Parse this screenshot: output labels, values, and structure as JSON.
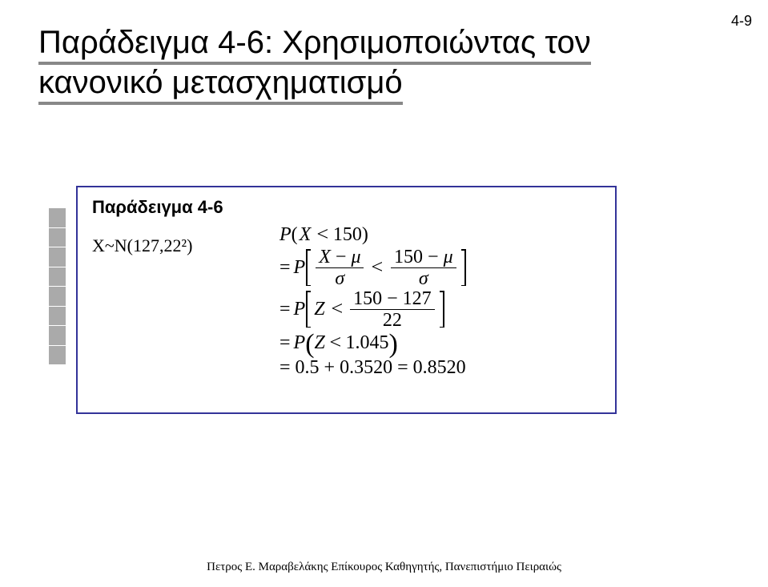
{
  "page_number": "4-9",
  "title_line1": "Παράδειγμα 4-6: Χρησιμοποιώντας τον",
  "title_line2": "κανονικό μετασχηματισμό",
  "box_label": "Παράδειγμα 4-6",
  "distribution": "X~N(127,22²)",
  "eq": {
    "l1_lhs": "P",
    "l1_open": "(",
    "l1_var": "X",
    "l1_lt": "<",
    "l1_val": "150",
    "l1_close": ")",
    "l2_eq": "=",
    "l2_P": "P",
    "f1_num_a": "X",
    "minus": "−",
    "mu": "μ",
    "sigma": "σ",
    "lt": "<",
    "f2_num_a": "150",
    "l3_Z": "Z",
    "f3_num": "150 − 127",
    "f3_den": "22",
    "l4_paren_open": "(",
    "l4_Z": "Z",
    "l4_val": "1.045",
    "l4_paren_close": ")",
    "l5": "= 0.5 + 0.3520 = 0.8520"
  },
  "footer": "Πετρος Ε. Μαραβελάκης Επίκουρος Καθηγητής, Πανεπιστήμιο Πειραιώς",
  "colors": {
    "underline": "#888888",
    "box_border": "#333399",
    "gray_block": "#aaaaaa"
  }
}
